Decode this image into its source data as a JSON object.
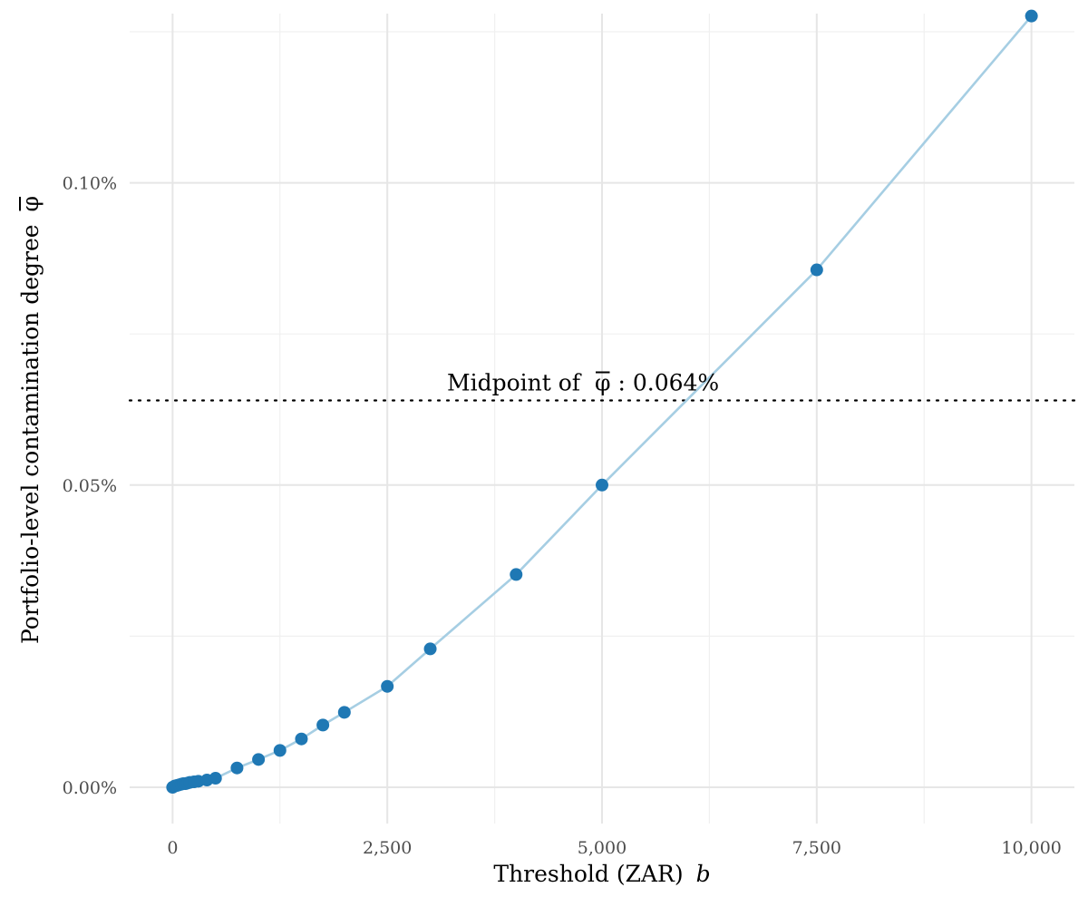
{
  "chart_data": {
    "type": "line",
    "xlabel": "Threshold (ZAR)",
    "xlabel_var": "b",
    "ylabel": "Portfolio-level contamination degree",
    "ylabel_symbol": "φ",
    "x_ticks": [
      0,
      2500,
      5000,
      7500,
      10000
    ],
    "x_tick_labels": [
      "0",
      "2,500",
      "5,000",
      "7,500",
      "10,000"
    ],
    "y_ticks": [
      0.0,
      0.05,
      0.1
    ],
    "y_tick_labels": [
      "0.00%",
      "0.05%",
      "0.10%"
    ],
    "xlim": [
      -500,
      10500
    ],
    "ylim": [
      -0.006,
      0.128
    ],
    "grid": true,
    "series": [
      {
        "x": [
          0,
          25,
          50,
          75,
          100,
          125,
          150,
          175,
          200,
          250,
          300,
          400,
          500,
          750,
          1000,
          1250,
          1500,
          1750,
          2000,
          2500,
          3000,
          4000,
          5000,
          7500,
          10000
        ],
        "y": [
          0.0,
          0.0002,
          0.0003,
          0.0004,
          0.0005,
          0.0006,
          0.0006,
          0.0007,
          0.0008,
          0.0009,
          0.001,
          0.0012,
          0.0015,
          0.0032,
          0.0046,
          0.0061,
          0.008,
          0.0103,
          0.0124,
          0.0167,
          0.0229,
          0.0352,
          0.05,
          0.0856,
          0.1276
        ],
        "line_color": "#a6cee3",
        "point_color": "#1f78b4"
      }
    ],
    "reference_line": {
      "y": 0.064,
      "style": "dotted",
      "label_prefix": "Midpoint of",
      "label_symbol": "φ",
      "label_value": ": 0.064%"
    }
  }
}
